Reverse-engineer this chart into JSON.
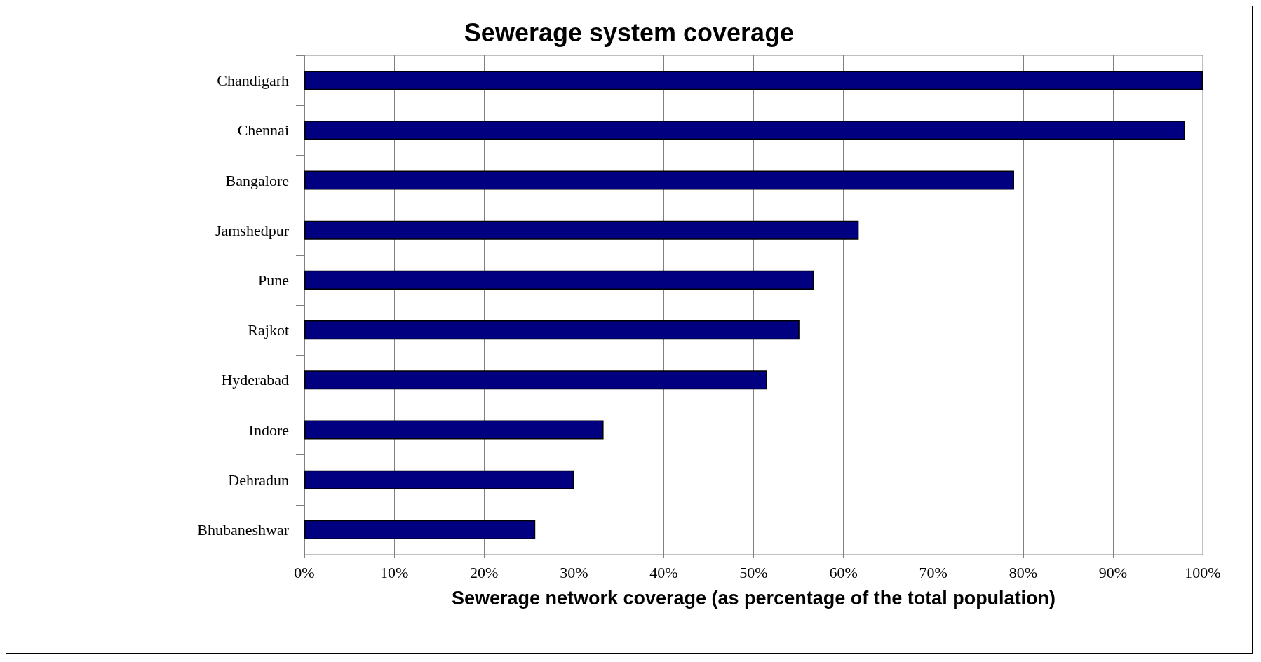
{
  "chart_data": {
    "type": "bar",
    "orientation": "horizontal",
    "title": "Sewerage system coverage",
    "xlabel": "Sewerage network coverage (as percentage of the total population)",
    "categories": [
      "Chandigarh",
      "Chennai",
      "Bangalore",
      "Jamshedpur",
      "Pune",
      "Rajkot",
      "Hyderabad",
      "Indore",
      "Dehradun",
      "Bhubaneshwar"
    ],
    "values": [
      100,
      98,
      79,
      61.7,
      56.7,
      55.1,
      51.5,
      33.3,
      30,
      25.7
    ],
    "color": "#000080",
    "xlim": [
      0,
      100
    ],
    "xticks": [
      {
        "value": 0,
        "label": "0%"
      },
      {
        "value": 10,
        "label": "10%"
      },
      {
        "value": 20,
        "label": "20%"
      },
      {
        "value": 30,
        "label": "30%"
      },
      {
        "value": 40,
        "label": "40%"
      },
      {
        "value": 50,
        "label": "50%"
      },
      {
        "value": 60,
        "label": "60%"
      },
      {
        "value": 70,
        "label": "70%"
      },
      {
        "value": 80,
        "label": "80%"
      },
      {
        "value": 90,
        "label": "90%"
      },
      {
        "value": 100,
        "label": "100%"
      }
    ],
    "grid": "x"
  }
}
